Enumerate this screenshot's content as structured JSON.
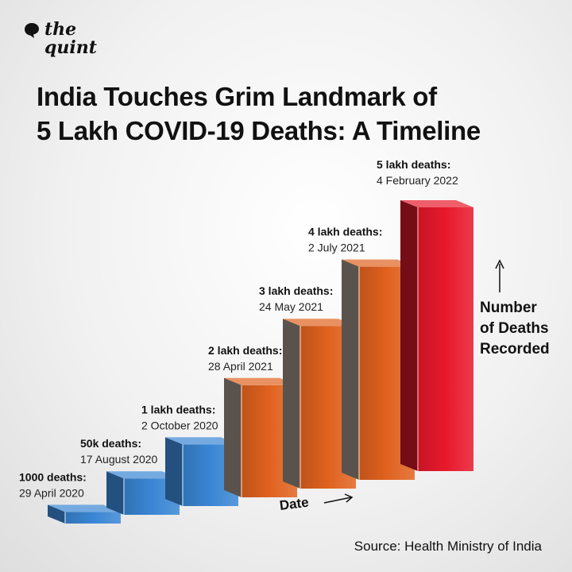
{
  "brand": {
    "line1": "the",
    "line2": "quint"
  },
  "title": {
    "line1": "India Touches Grim Landmark of",
    "line2": "5 Lakh COVID-19 Deaths: A Timeline"
  },
  "y_axis_label": {
    "line1": "Number",
    "line2": "of Deaths",
    "line3": "Recorded"
  },
  "x_axis_label": "Date",
  "source": "Source: Health Ministry of India",
  "colors": {
    "blue": "#3a86d4",
    "orange": "#e0621f",
    "red": "#e8192c"
  },
  "chart_data": {
    "type": "bar",
    "categories": [
      "29 April 2020",
      "17 August 2020",
      "2 October 2020",
      "28 April 2021",
      "24 May 2021",
      "2 July 2021",
      "4 February 2022"
    ],
    "labels": [
      "1000 deaths:",
      "50k deaths:",
      "1 lakh deaths:",
      "2 lakh deaths:",
      "3 lakh deaths:",
      "4 lakh deaths:",
      "5 lakh deaths:"
    ],
    "values": [
      1000,
      50000,
      100000,
      200000,
      300000,
      400000,
      500000
    ],
    "colors": [
      "blue",
      "blue",
      "blue",
      "orange",
      "orange",
      "orange",
      "red"
    ],
    "xlabel": "Date",
    "ylabel": "Number of Deaths Recorded"
  }
}
